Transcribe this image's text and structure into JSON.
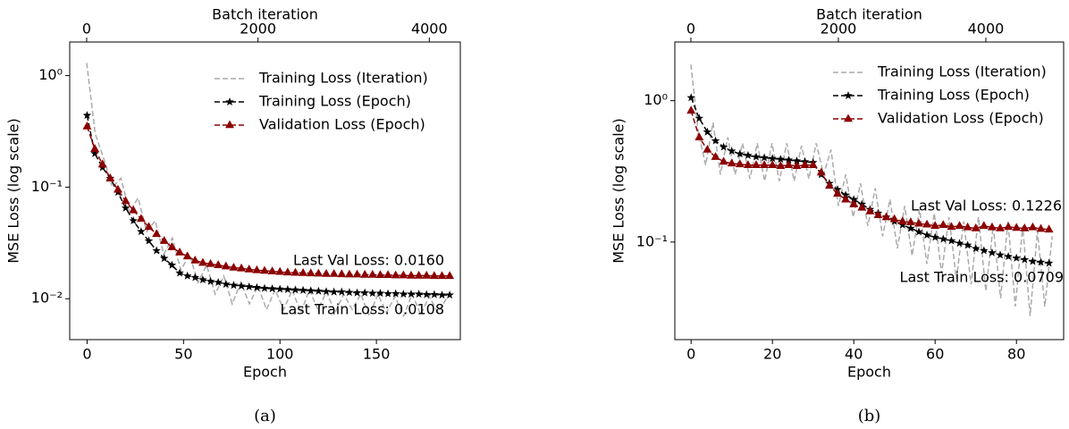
{
  "chart_data": [
    {
      "type": "line",
      "caption": "(a)",
      "xlabel": "Epoch",
      "ylabel": "MSE Loss (log scale)",
      "x2label": "Batch iteration",
      "log_scale": true,
      "legend": "upper right",
      "xlim": [
        -9,
        193.5
      ],
      "xticks": [
        0,
        50,
        100,
        150
      ],
      "x2lim": [
        -198,
        4362
      ],
      "x2ticks": [
        0,
        2000,
        4000
      ],
      "ylim": [
        0.0043,
        2.0
      ],
      "yticks": [
        {
          "value": 1,
          "label": "10⁰"
        },
        {
          "value": 0.1,
          "label": "10⁻¹"
        },
        {
          "value": 0.01,
          "label": "10⁻²"
        }
      ],
      "annotations": [
        "Last Val Loss: 0.0160",
        "Last Train Loss: 0.0108"
      ],
      "series": [
        {
          "name": "Training Loss (Iteration)",
          "color": "#aaaaaa",
          "axis": "x2",
          "x": [
            0,
            100,
            200,
            300,
            400,
            500,
            600,
            700,
            800,
            900,
            1000,
            1100,
            1200,
            1300,
            1400,
            1500,
            1600,
            1700,
            1800,
            1900,
            2000,
            2100,
            2200,
            2300,
            2400,
            2500,
            2600,
            2700,
            2800,
            2900,
            3000,
            3100,
            3200,
            3300,
            3400,
            3500,
            3600,
            3700,
            3800,
            3900,
            4000,
            4100,
            4200
          ],
          "values": [
            1.3,
            0.3,
            0.18,
            0.1,
            0.12,
            0.06,
            0.08,
            0.04,
            0.05,
            0.025,
            0.035,
            0.018,
            0.025,
            0.014,
            0.02,
            0.011,
            0.016,
            0.009,
            0.014,
            0.009,
            0.013,
            0.008,
            0.012,
            0.008,
            0.012,
            0.0075,
            0.012,
            0.008,
            0.0115,
            0.0075,
            0.011,
            0.008,
            0.011,
            0.007,
            0.011,
            0.0075,
            0.0105,
            0.007,
            0.011,
            0.0072,
            0.0105,
            0.0075,
            0.01
          ]
        },
        {
          "name": "Training Loss (Epoch)",
          "color": "#000000",
          "marker": "star",
          "x": [
            0,
            4,
            8,
            12,
            16,
            20,
            24,
            28,
            32,
            36,
            40,
            44,
            48,
            52,
            56,
            60,
            64,
            68,
            72,
            76,
            80,
            84,
            88,
            92,
            96,
            100,
            104,
            108,
            112,
            116,
            120,
            124,
            128,
            132,
            136,
            140,
            144,
            148,
            152,
            156,
            160,
            164,
            168,
            172,
            176,
            180,
            184,
            188
          ],
          "values": [
            0.44,
            0.2,
            0.15,
            0.12,
            0.09,
            0.065,
            0.05,
            0.04,
            0.033,
            0.027,
            0.023,
            0.02,
            0.017,
            0.016,
            0.0155,
            0.0148,
            0.0143,
            0.014,
            0.0135,
            0.0132,
            0.013,
            0.0128,
            0.0126,
            0.0124,
            0.0123,
            0.0122,
            0.0121,
            0.012,
            0.0119,
            0.0118,
            0.0117,
            0.0116,
            0.0115,
            0.0115,
            0.0114,
            0.0113,
            0.0113,
            0.0112,
            0.0112,
            0.0111,
            0.0111,
            0.011,
            0.011,
            0.011,
            0.0109,
            0.0109,
            0.0108,
            0.0108
          ]
        },
        {
          "name": "Validation Loss (Epoch)",
          "color": "#8b0000",
          "marker": "triangle",
          "x": [
            0,
            4,
            8,
            12,
            16,
            20,
            24,
            28,
            32,
            36,
            40,
            44,
            48,
            52,
            56,
            60,
            64,
            68,
            72,
            76,
            80,
            84,
            88,
            92,
            96,
            100,
            104,
            108,
            112,
            116,
            120,
            124,
            128,
            132,
            136,
            140,
            144,
            148,
            152,
            156,
            160,
            164,
            168,
            172,
            176,
            180,
            184,
            188
          ],
          "values": [
            0.35,
            0.22,
            0.16,
            0.12,
            0.095,
            0.075,
            0.062,
            0.052,
            0.044,
            0.038,
            0.033,
            0.029,
            0.026,
            0.024,
            0.022,
            0.021,
            0.0205,
            0.02,
            0.0195,
            0.019,
            0.0187,
            0.0183,
            0.018,
            0.0178,
            0.0176,
            0.0174,
            0.0172,
            0.0171,
            0.017,
            0.0169,
            0.0168,
            0.0167,
            0.0167,
            0.0166,
            0.0165,
            0.0165,
            0.0164,
            0.0164,
            0.0163,
            0.0163,
            0.0162,
            0.0162,
            0.0161,
            0.0161,
            0.0161,
            0.016,
            0.016,
            0.016
          ]
        }
      ]
    },
    {
      "type": "line",
      "caption": "(b)",
      "xlabel": "Epoch",
      "ylabel": "MSE Loss (log scale)",
      "x2label": "Batch iteration",
      "log_scale": true,
      "legend": "upper right",
      "xlim": [
        -4,
        91.6
      ],
      "xticks": [
        0,
        20,
        40,
        60,
        80
      ],
      "x2lim": [
        -218,
        5055
      ],
      "x2ticks": [
        0,
        2000,
        4000
      ],
      "ylim": [
        0.0204,
        2.6
      ],
      "yticks": [
        {
          "value": 1,
          "label": "10⁰"
        },
        {
          "value": 0.1,
          "label": "10⁻¹"
        }
      ],
      "annotations": [
        "Last Val Loss: 0.1226",
        "Last Train Loss: 0.0709"
      ],
      "series": [
        {
          "name": "Training Loss (Iteration)",
          "color": "#aaaaaa",
          "axis": "x2",
          "x": [
            0,
            100,
            200,
            300,
            400,
            500,
            600,
            700,
            800,
            900,
            1000,
            1100,
            1200,
            1300,
            1400,
            1500,
            1600,
            1700,
            1800,
            1900,
            2000,
            2100,
            2200,
            2300,
            2400,
            2500,
            2600,
            2700,
            2800,
            2900,
            3000,
            3100,
            3200,
            3300,
            3400,
            3500,
            3600,
            3700,
            3800,
            3900,
            4000,
            4100,
            4200,
            4300,
            4400,
            4500,
            4600,
            4700,
            4800,
            4900
          ],
          "values": [
            1.8,
            0.6,
            0.35,
            0.7,
            0.3,
            0.55,
            0.3,
            0.5,
            0.28,
            0.5,
            0.27,
            0.5,
            0.27,
            0.5,
            0.27,
            0.48,
            0.28,
            0.5,
            0.3,
            0.45,
            0.18,
            0.3,
            0.15,
            0.26,
            0.13,
            0.24,
            0.11,
            0.2,
            0.09,
            0.18,
            0.08,
            0.17,
            0.07,
            0.16,
            0.06,
            0.15,
            0.055,
            0.14,
            0.05,
            0.15,
            0.045,
            0.13,
            0.04,
            0.14,
            0.035,
            0.13,
            0.03,
            0.12,
            0.035,
            0.11
          ]
        },
        {
          "name": "Training Loss (Epoch)",
          "color": "#000000",
          "marker": "star",
          "x": [
            0,
            2,
            4,
            6,
            8,
            10,
            12,
            14,
            16,
            18,
            20,
            22,
            24,
            26,
            28,
            30,
            32,
            34,
            36,
            38,
            40,
            42,
            44,
            46,
            48,
            50,
            52,
            54,
            56,
            58,
            60,
            62,
            64,
            66,
            68,
            70,
            72,
            74,
            76,
            78,
            80,
            82,
            84,
            86,
            88
          ],
          "values": [
            1.05,
            0.75,
            0.6,
            0.52,
            0.47,
            0.44,
            0.42,
            0.41,
            0.4,
            0.395,
            0.39,
            0.385,
            0.38,
            0.375,
            0.37,
            0.365,
            0.3,
            0.26,
            0.235,
            0.215,
            0.2,
            0.185,
            0.17,
            0.16,
            0.15,
            0.14,
            0.132,
            0.125,
            0.118,
            0.112,
            0.108,
            0.105,
            0.102,
            0.098,
            0.095,
            0.09,
            0.087,
            0.084,
            0.081,
            0.079,
            0.077,
            0.075,
            0.073,
            0.072,
            0.0709
          ]
        },
        {
          "name": "Validation Loss (Epoch)",
          "color": "#8b0000",
          "marker": "triangle",
          "x": [
            0,
            2,
            4,
            6,
            8,
            10,
            12,
            14,
            16,
            18,
            20,
            22,
            24,
            26,
            28,
            30,
            32,
            34,
            36,
            38,
            40,
            42,
            44,
            46,
            48,
            50,
            52,
            54,
            56,
            58,
            60,
            62,
            64,
            66,
            68,
            70,
            72,
            74,
            76,
            78,
            80,
            82,
            84,
            86,
            88
          ],
          "values": [
            0.85,
            0.55,
            0.45,
            0.4,
            0.37,
            0.36,
            0.355,
            0.35,
            0.35,
            0.35,
            0.35,
            0.345,
            0.35,
            0.345,
            0.35,
            0.35,
            0.31,
            0.25,
            0.22,
            0.2,
            0.185,
            0.175,
            0.165,
            0.155,
            0.15,
            0.145,
            0.14,
            0.138,
            0.135,
            0.133,
            0.13,
            0.132,
            0.128,
            0.13,
            0.127,
            0.125,
            0.13,
            0.127,
            0.125,
            0.128,
            0.126,
            0.125,
            0.127,
            0.124,
            0.1226
          ]
        }
      ]
    }
  ]
}
